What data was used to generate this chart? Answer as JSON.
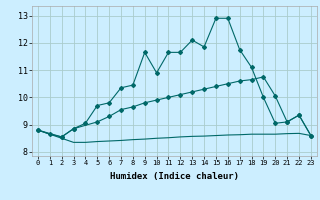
{
  "xlabel": "Humidex (Indice chaleur)",
  "bg_color": "#cceeff",
  "grid_color": "#aacccc",
  "line_color": "#006868",
  "xlim": [
    -0.5,
    23.5
  ],
  "ylim": [
    7.85,
    13.35
  ],
  "xticks": [
    0,
    1,
    2,
    3,
    4,
    5,
    6,
    7,
    8,
    9,
    10,
    11,
    12,
    13,
    14,
    15,
    16,
    17,
    18,
    19,
    20,
    21,
    22,
    23
  ],
  "yticks": [
    8,
    9,
    10,
    11,
    12,
    13
  ],
  "line1_x": [
    0,
    1,
    2,
    3,
    4,
    5,
    6,
    7,
    8,
    9,
    10,
    11,
    12,
    13,
    14,
    15,
    16,
    17,
    18,
    19,
    20,
    21,
    22,
    23
  ],
  "line1_y": [
    8.8,
    8.65,
    8.55,
    8.85,
    9.05,
    9.7,
    9.8,
    10.35,
    10.45,
    11.65,
    10.9,
    11.65,
    11.65,
    12.1,
    11.85,
    12.9,
    12.9,
    11.75,
    11.1,
    10.0,
    9.05,
    9.1,
    9.35,
    8.6
  ],
  "line2_x": [
    0,
    2,
    3,
    5,
    6,
    7,
    8,
    9,
    10,
    11,
    12,
    13,
    14,
    15,
    16,
    17,
    18,
    19,
    20,
    21,
    22,
    23
  ],
  "line2_y": [
    8.8,
    8.55,
    8.85,
    9.1,
    9.3,
    9.55,
    9.65,
    9.8,
    9.9,
    10.0,
    10.1,
    10.2,
    10.3,
    10.4,
    10.5,
    10.6,
    10.65,
    10.75,
    10.05,
    9.1,
    9.35,
    8.6
  ],
  "line3_x": [
    0,
    2,
    3,
    4,
    5,
    6,
    7,
    8,
    9,
    10,
    11,
    12,
    13,
    14,
    15,
    16,
    17,
    18,
    19,
    20,
    21,
    22,
    23
  ],
  "line3_y": [
    8.8,
    8.5,
    8.35,
    8.35,
    8.38,
    8.4,
    8.42,
    8.45,
    8.47,
    8.5,
    8.52,
    8.55,
    8.57,
    8.58,
    8.6,
    8.62,
    8.63,
    8.65,
    8.65,
    8.65,
    8.67,
    8.68,
    8.6
  ]
}
